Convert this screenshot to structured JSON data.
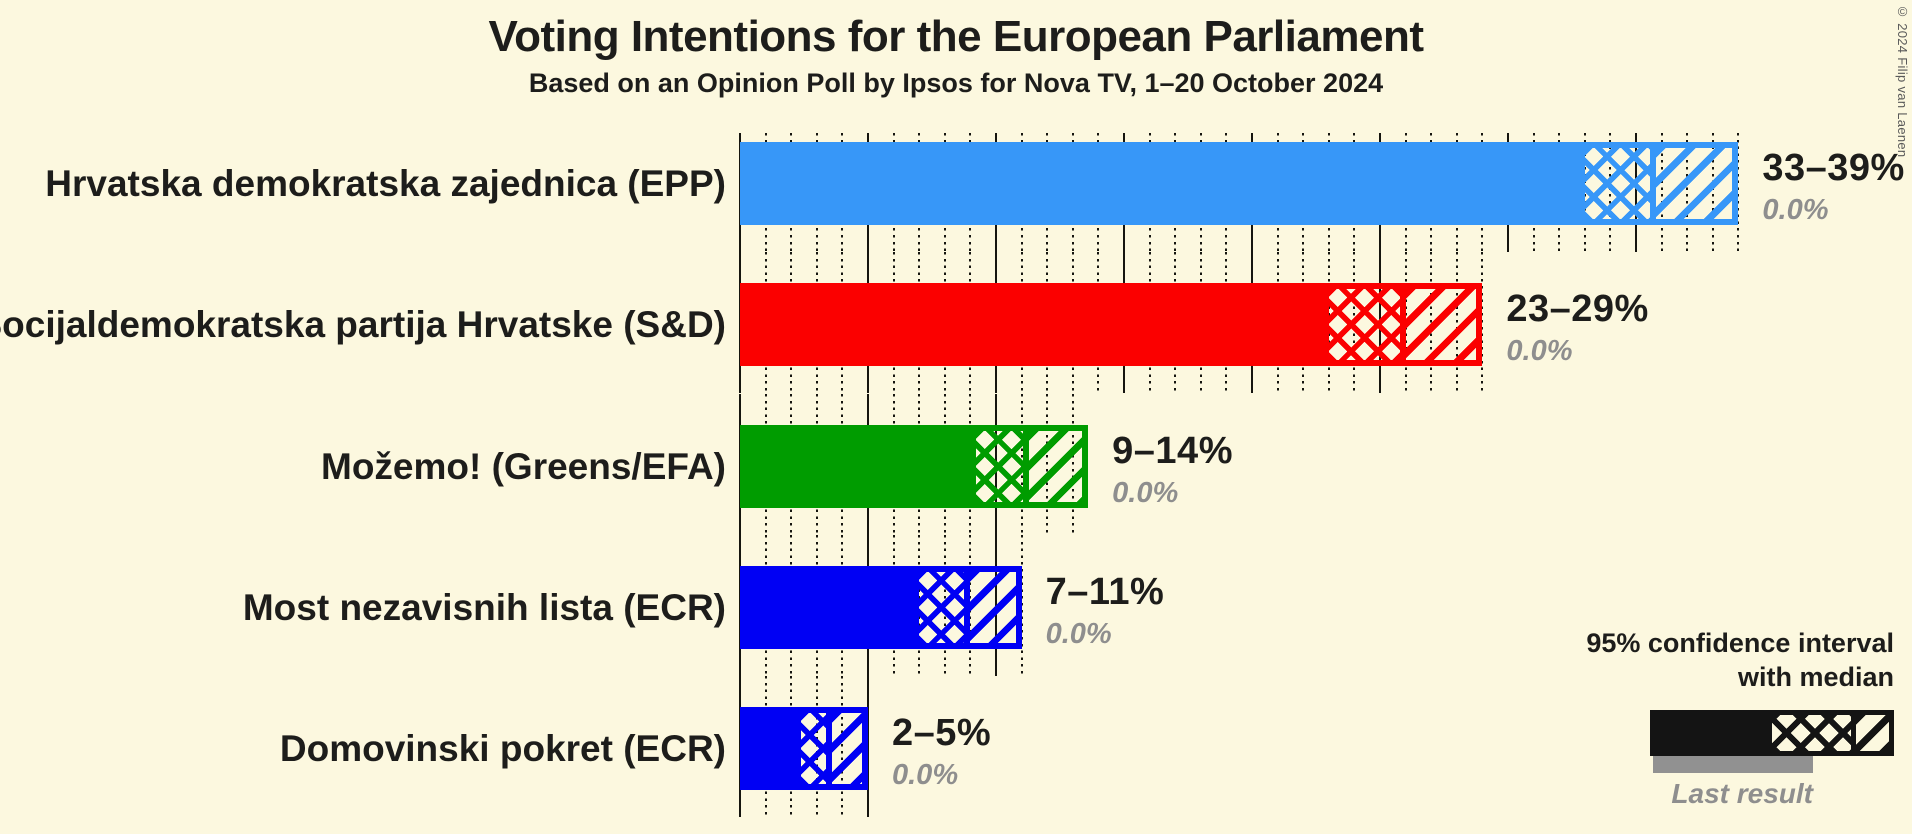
{
  "title": "Voting Intentions for the European Parliament",
  "subtitle": "Based on an Opinion Poll by Ipsos for Nova TV, 1–20 October 2024",
  "copyright": "© 2024 Filip van Laenen",
  "legend": {
    "line1": "95% confidence interval",
    "line2": "with median",
    "last_result_label": "Last result"
  },
  "colors": {
    "background": "#FCF8DF",
    "text": "#1D1D1B",
    "muted_text": "#8E8E8E",
    "gridline": "#15150F",
    "legend_sample": "#141414",
    "legend_last_result_bar": "#919191"
  },
  "chart_data": {
    "type": "bar",
    "orientation": "horizontal",
    "title": "Voting Intentions for the European Parliament",
    "subtitle": "Based on an Opinion Poll by Ipsos for Nova TV, 1–20 October 2024",
    "unit": "%",
    "x_axis": {
      "min": 0,
      "max": 39,
      "major_gridline_step": 5,
      "minor_gridline_step": 1,
      "major_style": "solid",
      "minor_style": "dotted",
      "tick_labels_visible": false
    },
    "legend_position": "bottom-right",
    "categories": [
      "Hrvatska demokratska zajednica (EPP)",
      "Socijaldemokratska partija Hrvatske (S&D)",
      "Možemo! (Greens/EFA)",
      "Most nezavisnih lista (ECR)",
      "Domovinski pokret (ECR)"
    ],
    "series": [
      {
        "name": "ci_low",
        "values": [
          33,
          23,
          9.2,
          7,
          2.4
        ]
      },
      {
        "name": "median",
        "values": [
          35.8,
          26,
          11.3,
          9,
          3.6
        ]
      },
      {
        "name": "ci_high",
        "values": [
          39,
          29,
          13.6,
          11,
          5
        ]
      },
      {
        "name": "last_result",
        "values": [
          0.0,
          0.0,
          0.0,
          0.0,
          0.0
        ]
      }
    ],
    "bars": [
      {
        "label": "Hrvatska demokratska zajednica (EPP)",
        "ci_label": "33–39%",
        "last_result_label": "0.0%",
        "low": 33,
        "median": 35.8,
        "high": 39,
        "color": "#3797F8"
      },
      {
        "label": "Socijaldemokratska partija Hrvatske (S&D)",
        "ci_label": "23–29%",
        "last_result_label": "0.0%",
        "low": 23,
        "median": 26,
        "high": 29,
        "color": "#FB0000"
      },
      {
        "label": "Možemo! (Greens/EFA)",
        "ci_label": "9–14%",
        "last_result_label": "0.0%",
        "low": 9.2,
        "median": 11.3,
        "high": 13.6,
        "color": "#009C00"
      },
      {
        "label": "Most nezavisnih lista (ECR)",
        "ci_label": "7–11%",
        "last_result_label": "0.0%",
        "low": 7,
        "median": 9,
        "high": 11,
        "color": "#0000F4"
      },
      {
        "label": "Domovinski pokret (ECR)",
        "ci_label": "2–5%",
        "last_result_label": "0.0%",
        "low": 2.4,
        "median": 3.6,
        "high": 5,
        "color": "#0000F4"
      }
    ]
  }
}
